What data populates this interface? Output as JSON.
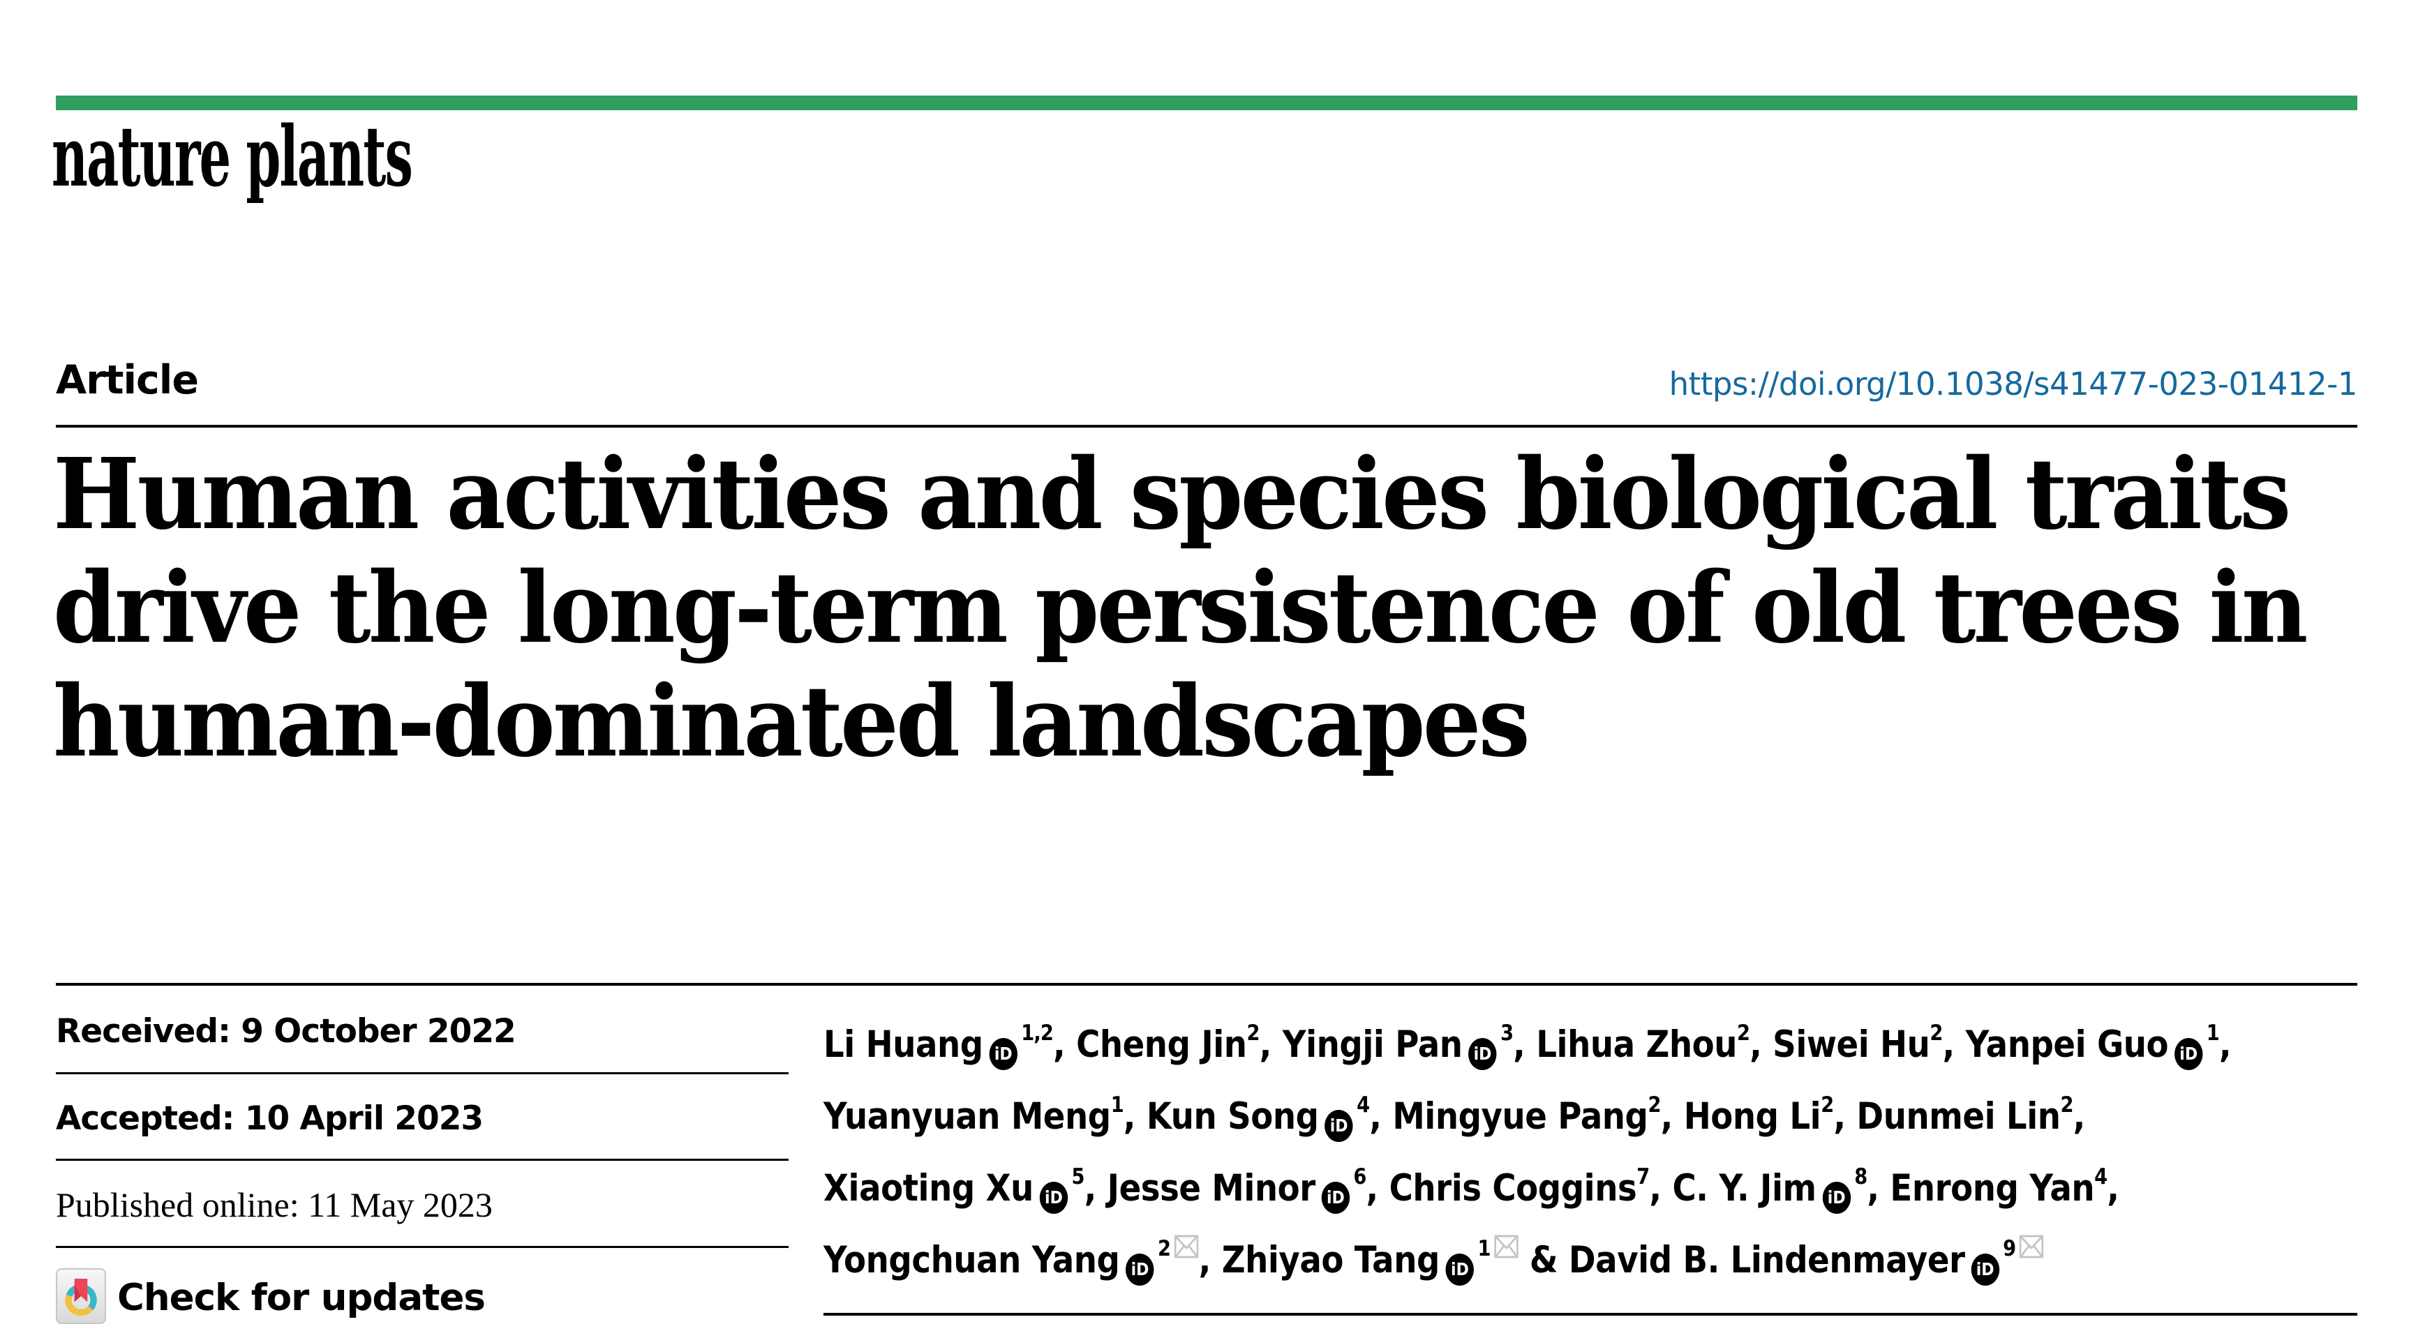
{
  "colors": {
    "accent_green": "#2f9e5f",
    "link_blue": "#15699e",
    "rule_black": "#000000",
    "envelope_gray": "#c4c4c4",
    "crossmark_teal": "#3bb5c9",
    "crossmark_yellow": "#f3c03f",
    "crossmark_red": "#ee4454"
  },
  "masthead": {
    "brand": "nature plants"
  },
  "header": {
    "article_label": "Article",
    "doi": "https://doi.org/10.1038/s41477-023-01412-1"
  },
  "title": {
    "line1": "Human activities and species biological traits",
    "line2": "drive the long-term persistence of old trees in",
    "line3": "human-dominated landscapes"
  },
  "dates": {
    "received": "Received: 9 October 2022",
    "accepted": "Accepted: 10 April 2023",
    "published": "Published online: 11 May 2023"
  },
  "crossmark": {
    "label": "Check for updates"
  },
  "icons": {
    "orcid_text": "iD",
    "orcid_name": "orcid-icon",
    "email_name": "email-icon",
    "crossmark_name": "crossmark-icon"
  },
  "authors": {
    "lines": [
      [
        {
          "name": "Li Huang",
          "orcid": true,
          "sup": "1,2",
          "env": false,
          "sep": ", "
        },
        {
          "name": "Cheng Jin",
          "orcid": false,
          "sup": "2",
          "env": false,
          "sep": ", "
        },
        {
          "name": "Yingji Pan",
          "orcid": true,
          "sup": "3",
          "env": false,
          "sep": ", "
        },
        {
          "name": "Lihua Zhou",
          "orcid": false,
          "sup": "2",
          "env": false,
          "sep": ", "
        },
        {
          "name": "Siwei Hu",
          "orcid": false,
          "sup": "2",
          "env": false,
          "sep": ", "
        },
        {
          "name": "Yanpei Guo",
          "orcid": true,
          "sup": "1",
          "env": false,
          "sep": ","
        }
      ],
      [
        {
          "name": "Yuanyuan Meng",
          "orcid": false,
          "sup": "1",
          "env": false,
          "sep": ", "
        },
        {
          "name": "Kun Song",
          "orcid": true,
          "sup": "4",
          "env": false,
          "sep": ", "
        },
        {
          "name": "Mingyue Pang",
          "orcid": false,
          "sup": "2",
          "env": false,
          "sep": ", "
        },
        {
          "name": "Hong Li",
          "orcid": false,
          "sup": "2",
          "env": false,
          "sep": ", "
        },
        {
          "name": "Dunmei Lin",
          "orcid": false,
          "sup": "2",
          "env": false,
          "sep": ","
        }
      ],
      [
        {
          "name": "Xiaoting Xu",
          "orcid": true,
          "sup": "5",
          "env": false,
          "sep": ", "
        },
        {
          "name": "Jesse Minor",
          "orcid": true,
          "sup": "6",
          "env": false,
          "sep": ", "
        },
        {
          "name": "Chris Coggins",
          "orcid": false,
          "sup": "7",
          "env": false,
          "sep": ", "
        },
        {
          "name": "C. Y. Jim",
          "orcid": true,
          "sup": "8",
          "env": false,
          "sep": ", "
        },
        {
          "name": "Enrong Yan",
          "orcid": false,
          "sup": "4",
          "env": false,
          "sep": ","
        }
      ],
      [
        {
          "name": "Yongchuan Yang",
          "orcid": true,
          "sup": "2",
          "env": true,
          "sep": ", "
        },
        {
          "name": "Zhiyao Tang",
          "orcid": true,
          "sup": "1",
          "env": true,
          "sep": " & "
        },
        {
          "name": "David B. Lindenmayer",
          "orcid": true,
          "sup": "9",
          "env": true,
          "sep": ""
        }
      ]
    ]
  }
}
